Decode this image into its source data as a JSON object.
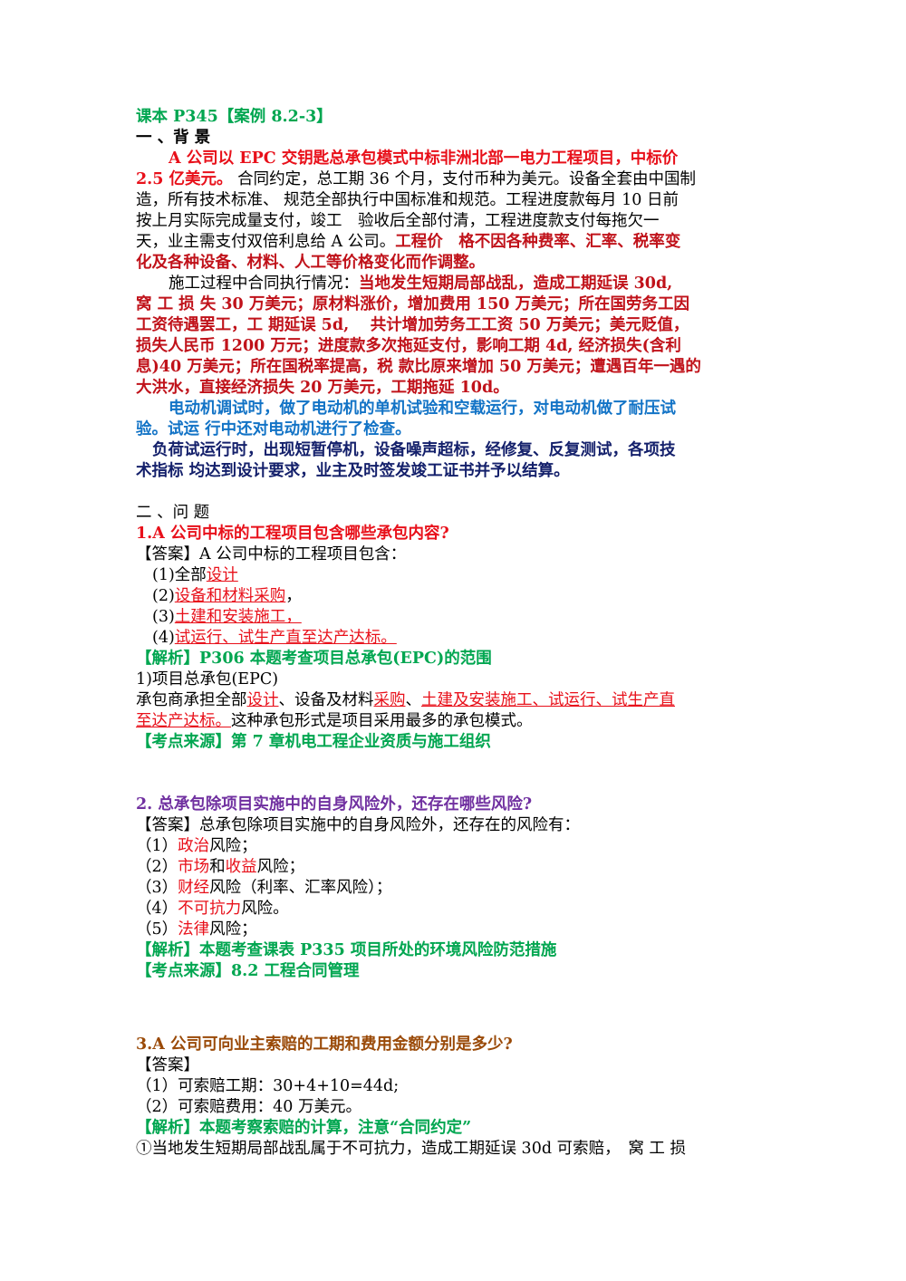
{
  "header": {
    "title": "课本 P345【案例 8.2-3】"
  },
  "background": {
    "heading": "一 、背 景",
    "p1_red": "A 公司以 EPC 交钥匙总承包模式中标非洲北部一电力工程项目，中标价",
    "p1_red2": "2.5 亿美元。",
    "p1_black": " 合同约定，总工期 36 个月，支付币种为美元。设备全套由中国制",
    "p1_l3": "造，所有技术标准、 规范全部执行中国标准和规范。工程进度款每月 10 日前",
    "p1_l4": "按上月实际完成量支付，竣工　验收后全部付清，工程进度款支付每拖欠一",
    "p1_l5a": "天，业主需支付双倍利息给 A 公司。",
    "p1_l5b": "工程价　格不因各种费率、汇率、税率变",
    "p1_l6": "化及各种设备、材料、人工等价格变化而作调整。",
    "p2_a": "施工过程中合同执行情况：",
    "p2_b": "当地发生短期局部战乱，造成工期延误 30d,",
    "p2_l2": "窝 工 损 失 30 万美元；原材料涨价，增加费用 150 万美元；所在国劳务工因",
    "p2_l3": "工资待遇罢工，工 期延误 5d,　 共计增加劳务工工资 50 万美元；美元贬值，",
    "p2_l4": "损失人民币 1200 万元；进度款多次拖延支付，影响工期 4d, 经济损失(含利",
    "p2_l5": "息)40 万美元；所在国税率提高，税 款比原来增加 50 万美元；遭遇百年一遇的",
    "p2_l6": "大洪水，直接经济损失 20 万美元，工期拖延 10d。",
    "p3_l1": "电动机调试时，做了电动机的单机试验和空载运行，对电动机做了耐压试",
    "p3_l2": "验。试运 行中还对电动机进行了检查。",
    "p4_l1": "负荷试运行时，出现短暂停机，设备噪声超标，经修复、反复测试，各项技",
    "p4_l2": "术指标 均达到设计要求，业主及时签发竣工证书并予以结算。"
  },
  "questions": {
    "heading": "二 、问 题",
    "q1": {
      "title": "1.A 公司中标的工程项目包含哪些承包内容?",
      "answer_intro": "【答案】A 公司中标的工程项目包含：",
      "items": [
        {
          "num": "(1)全部",
          "text": "设计",
          "tail": ""
        },
        {
          "num": "(2)",
          "text": "设备和材料采购",
          "tail": "，"
        },
        {
          "num": "(3)",
          "text": "土建和安装施工，",
          "tail": ""
        },
        {
          "num": "(4)",
          "text": "试运行、试生产直至达产达标。",
          "tail": ""
        }
      ],
      "analysis": "【解析】P306 本题考查项目总承包(EPC)的范围",
      "sub1": "1)项目总承包(EPC)",
      "sub2_a": "承包商承担全部",
      "sub2_b": "设计",
      "sub2_c": "、设备及材料",
      "sub2_d": "采购",
      "sub2_e": "、",
      "sub2_f": "土建及安装施工、试运行、试生产直",
      "sub3_a": "至达产达标。",
      "sub3_b": "这种承包形式是项目采用最多的承包模式。",
      "source": "【考点来源】第 7 章机电工程企业资质与施工组织"
    },
    "q2": {
      "title": "2. 总承包除项目实施中的自身风险外，还存在哪些风险?",
      "answer_intro": "【答案】总承包除项目实施中的自身风险外，还存在的风险有：",
      "items": [
        {
          "num": "（1）",
          "red": "政治",
          "mid": "风险",
          "red2": "",
          "tail": "；"
        },
        {
          "num": "（2）",
          "red": "市场",
          "mid": "和",
          "red2": "收益",
          "tail": "风险；"
        },
        {
          "num": "（3）",
          "red": "财经",
          "mid": "风险（利率、汇率风险）；",
          "red2": "",
          "tail": ""
        },
        {
          "num": "（4）",
          "red": "不可抗力",
          "mid": "风险。",
          "red2": "",
          "tail": ""
        },
        {
          "num": "（5）",
          "red": "法律",
          "mid": "风险；",
          "red2": "",
          "tail": ""
        }
      ],
      "analysis": "【解析】本题考查课表 P335 项目所处的环境风险防范措施",
      "source": "【考点来源】8.2 工程合同管理"
    },
    "q3": {
      "title": "3.A 公司可向业主索赔的工期和费用金额分别是多少?",
      "answer_intro": "【答案】",
      "items": [
        "（1）可索赔工期：30+4+10=44d;",
        "（2）可索赔费用：40 万美元。"
      ],
      "analysis": "【解析】本题考察索赔的计算，注意“合同约定”",
      "last_line": "①当地发生短期局部战乱属于不可抗力，造成工期延误 30d 可索赔，　窝 工 损"
    }
  }
}
